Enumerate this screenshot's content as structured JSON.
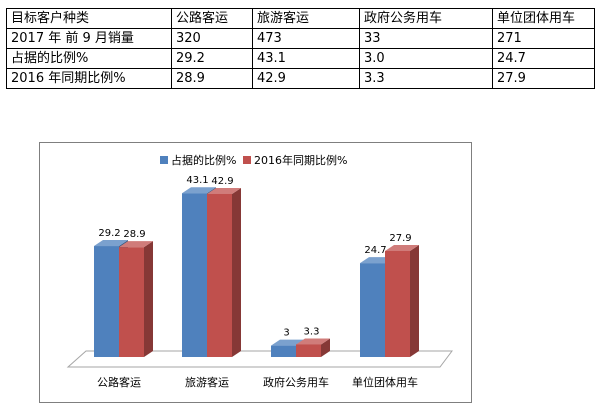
{
  "table": {
    "header": [
      "目标客户种类",
      "公路客运",
      "旅游客运",
      "政府公务用车",
      "单位团体用车"
    ],
    "rows": [
      [
        "2017 年  前 9 月销量",
        "320",
        "473",
        "33",
        "271"
      ],
      [
        "占据的比例%",
        "29.2",
        "43.1",
        "3.0",
        "24.7"
      ],
      [
        "2016 年同期比例%",
        "28.9",
        "42.9",
        "3.3",
        "27.9"
      ]
    ]
  },
  "chart_data": {
    "type": "bar",
    "categories": [
      "公路客运",
      "旅游客运",
      "政府公务用车",
      "单位团体用车"
    ],
    "series": [
      {
        "name": "占据的比例%",
        "values": [
          29.2,
          43.1,
          3,
          24.7
        ],
        "color": "#4f81bd",
        "labels": [
          "29.2",
          "43.1",
          "3",
          "24.7"
        ]
      },
      {
        "name": "2016年同期比例%",
        "values": [
          28.9,
          42.9,
          3.3,
          27.9
        ],
        "color": "#c0504d",
        "labels": [
          "28.9",
          "42.9",
          "3.3",
          "27.9"
        ]
      }
    ],
    "ylim": [
      0,
      50
    ],
    "legend_position": "top",
    "grid": false,
    "style": "3d-column"
  }
}
